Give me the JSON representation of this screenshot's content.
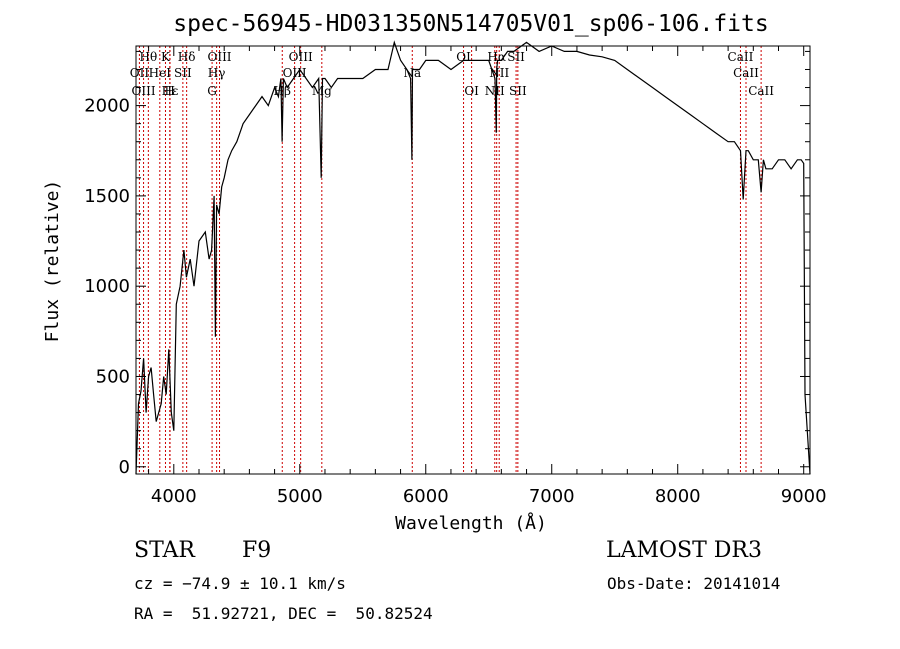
{
  "chart_data": {
    "type": "line",
    "title": "spec-56945-HD031350N514705V01_sp06-106.fits",
    "xlabel": "Wavelength (Å)",
    "ylabel": "Flux (relative)",
    "xlim": [
      3700,
      9050
    ],
    "ylim": [
      -40,
      2330
    ],
    "xticks": [
      4000,
      5000,
      6000,
      7000,
      8000,
      9000
    ],
    "yticks": [
      0,
      500,
      1000,
      1500,
      2000
    ],
    "grid": false,
    "series": [
      {
        "x": [
          3700,
          3720,
          3740,
          3760,
          3780,
          3800,
          3820,
          3840,
          3860,
          3880,
          3900,
          3920,
          3940,
          3960,
          3980,
          4000,
          4020,
          4050,
          4080,
          4100,
          4130,
          4160,
          4200,
          4250,
          4280,
          4300,
          4320,
          4330,
          4340,
          4360,
          4380,
          4400,
          4430,
          4460,
          4500,
          4550,
          4600,
          4650,
          4700,
          4750,
          4800,
          4830,
          4850,
          4860,
          4870,
          4900,
          4950,
          5000,
          5050,
          5100,
          5150,
          5170,
          5180,
          5200,
          5250,
          5300,
          5400,
          5500,
          5600,
          5700,
          5750,
          5800,
          5850,
          5880,
          5890,
          5895,
          5900,
          5920,
          5950,
          6000,
          6100,
          6200,
          6300,
          6400,
          6500,
          6550,
          6560,
          6563,
          6570,
          6600,
          6650,
          6700,
          6800,
          6900,
          7000,
          7100,
          7200,
          7300,
          7400,
          7500,
          7600,
          7700,
          7800,
          7900,
          8000,
          8100,
          8200,
          8300,
          8400,
          8450,
          8498,
          8520,
          8542,
          8560,
          8600,
          8640,
          8662,
          8680,
          8700,
          8750,
          8800,
          8850,
          8900,
          8950,
          8980,
          9000,
          9010,
          9050
        ],
        "y": [
          -40,
          350,
          420,
          600,
          300,
          500,
          550,
          400,
          250,
          300,
          350,
          500,
          400,
          650,
          300,
          200,
          900,
          1000,
          1200,
          1050,
          1150,
          1000,
          1250,
          1300,
          1150,
          1200,
          1500,
          720,
          1450,
          1400,
          1550,
          1600,
          1700,
          1750,
          1800,
          1900,
          1950,
          2000,
          2050,
          2000,
          2100,
          2050,
          2150,
          1800,
          2150,
          2100,
          2150,
          2200,
          2150,
          2100,
          2150,
          1600,
          2150,
          2150,
          2100,
          2150,
          2150,
          2150,
          2200,
          2200,
          2350,
          2250,
          2200,
          2150,
          1700,
          2200,
          2200,
          2200,
          2200,
          2250,
          2250,
          2200,
          2250,
          2250,
          2250,
          2150,
          1850,
          2200,
          2250,
          2250,
          2300,
          2300,
          2350,
          2300,
          2330,
          2300,
          2300,
          2280,
          2270,
          2250,
          2200,
          2150,
          2100,
          2050,
          2000,
          1950,
          1900,
          1850,
          1800,
          1800,
          1750,
          1480,
          1750,
          1750,
          1700,
          1700,
          1520,
          1700,
          1650,
          1650,
          1700,
          1700,
          1650,
          1700,
          1700,
          1680,
          400,
          -40
        ],
        "x_comment": ""
      }
    ],
    "lines": [
      {
        "label": "Hθ",
        "x": 3798,
        "row": 0
      },
      {
        "label": "K",
        "x": 3934,
        "row": 0
      },
      {
        "label": "Hδ",
        "x": 4102,
        "row": 0
      },
      {
        "label": "OIII",
        "x": 4363,
        "row": 0
      },
      {
        "label": "OIII",
        "x": 5007,
        "row": 0
      },
      {
        "label": "Na",
        "x": 5893,
        "row": 1
      },
      {
        "label": "OI",
        "x": 6300,
        "row": 0
      },
      {
        "label": "Hα",
        "x": 6563,
        "row": 0
      },
      {
        "label": "SII",
        "x": 6717,
        "row": 0
      },
      {
        "label": "CaII",
        "x": 8498,
        "row": 0
      },
      {
        "label": "OII",
        "x": 3727,
        "row": 1
      },
      {
        "label": "HeI",
        "x": 3889,
        "row": 1
      },
      {
        "label": "SII",
        "x": 4072,
        "row": 1
      },
      {
        "label": "Hγ",
        "x": 4340,
        "row": 1
      },
      {
        "label": "OIII",
        "x": 4959,
        "row": 1
      },
      {
        "label": "NII",
        "x": 6583,
        "row": 1
      },
      {
        "label": "CaII",
        "x": 8542,
        "row": 1
      },
      {
        "label": "OIII",
        "x": 3760,
        "row": 2
      },
      {
        "label": "Hε",
        "x": 3970,
        "row": 2
      },
      {
        "label": "H",
        "x": 3968,
        "row": 2
      },
      {
        "label": "G",
        "x": 4304,
        "row": 2
      },
      {
        "label": "Hβ",
        "x": 4861,
        "row": 2
      },
      {
        "label": "Mg",
        "x": 5175,
        "row": 2
      },
      {
        "label": "OI",
        "x": 6364,
        "row": 2
      },
      {
        "label": "NII",
        "x": 6548,
        "row": 2
      },
      {
        "label": "SII",
        "x": 6731,
        "row": 2
      },
      {
        "label": "CaII",
        "x": 8662,
        "row": 2
      }
    ],
    "line_color": "#cc0000"
  },
  "info": {
    "object_class": "STAR",
    "subclass": "F9",
    "survey": "LAMOST DR3",
    "redshift": "cz = −74.9 ± 10.1 km/s",
    "obs_date": "Obs-Date: 20141014",
    "coords": "RA =  51.92721, DEC =  50.82524"
  }
}
